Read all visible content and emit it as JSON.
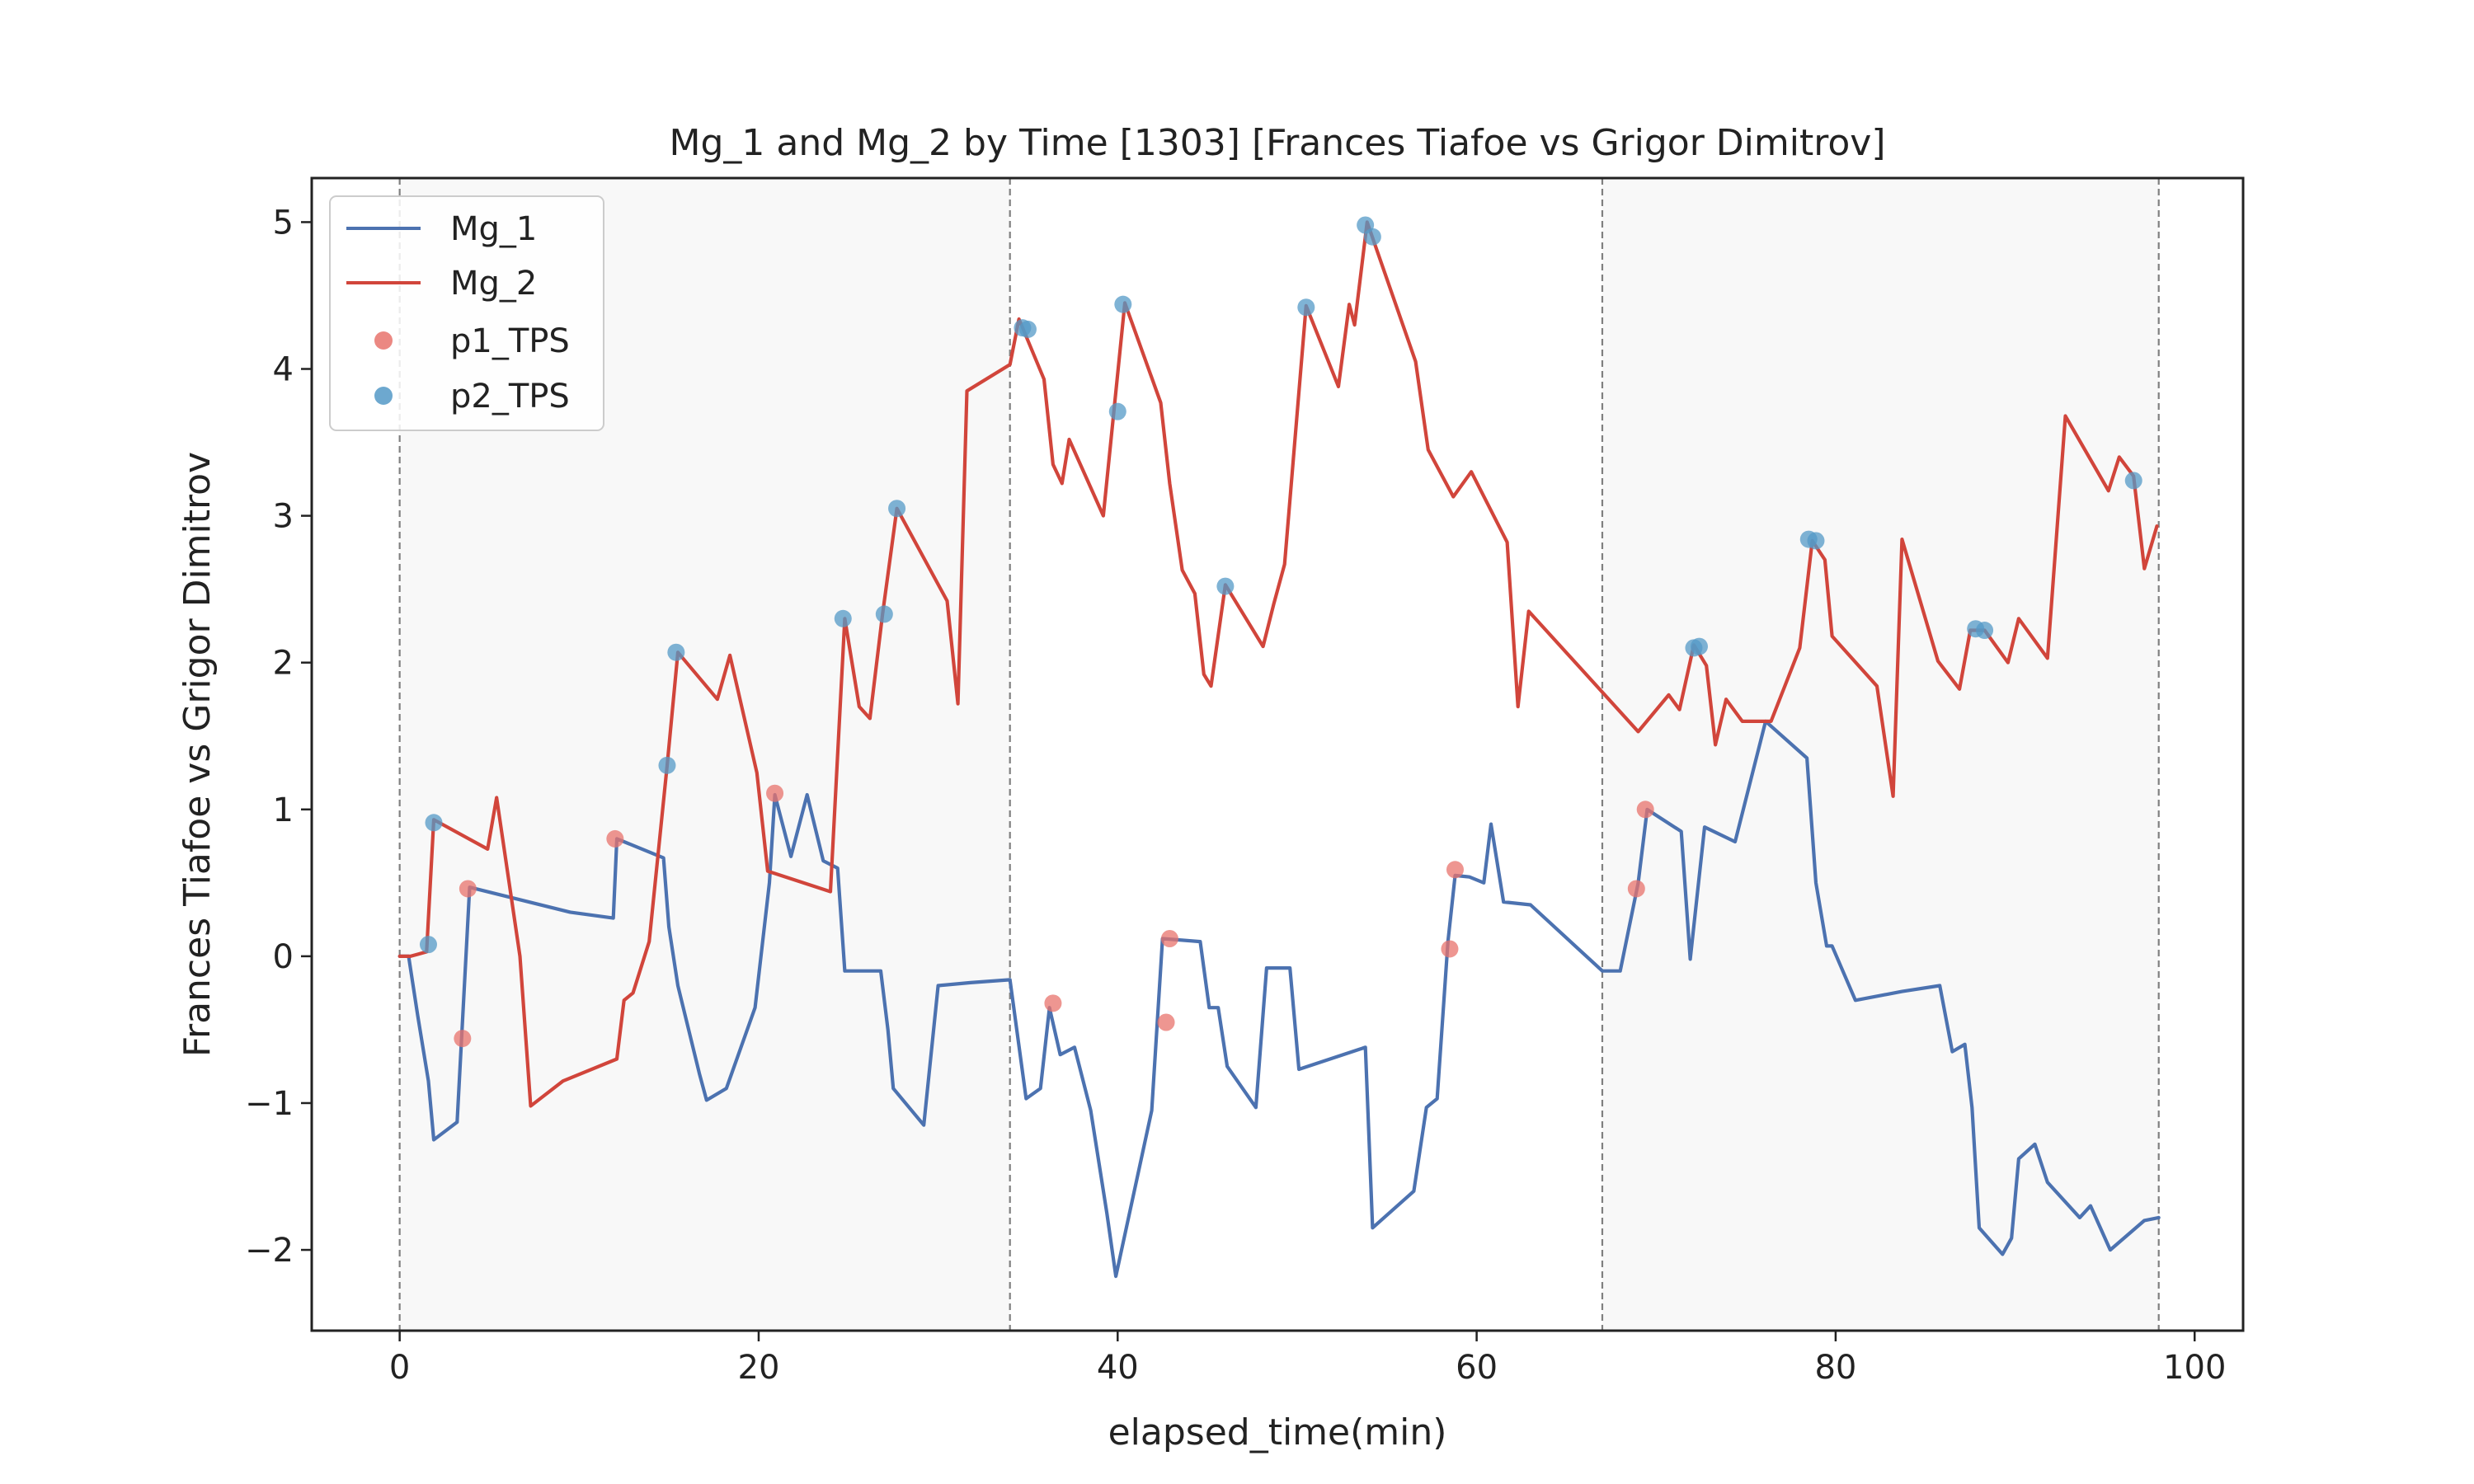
{
  "chart_data": {
    "type": "line",
    "title": "Mg_1 and Mg_2 by Time [1303] [Frances Tiafoe vs Grigor Dimitrov]",
    "xlabel": "elapsed_time(min)",
    "ylabel": "Frances Tiafoe vs Grigor Dimitrov",
    "xlim": [
      -4.9,
      102.7
    ],
    "ylim": [
      -2.55,
      5.3
    ],
    "xticks": [
      0,
      20,
      40,
      60,
      80,
      100
    ],
    "xtick_labels": [
      "0",
      "20",
      "40",
      "60",
      "80",
      "100"
    ],
    "yticks": [
      -2,
      -1,
      0,
      1,
      2,
      3,
      4,
      5
    ],
    "ytick_labels": [
      "−2",
      "−1",
      "0",
      "1",
      "2",
      "3",
      "4",
      "5"
    ],
    "set_boundaries": [
      0,
      34.0,
      67.0,
      98.0
    ],
    "shaded_sets": [
      [
        0,
        34.0
      ],
      [
        67.0,
        98.0
      ]
    ],
    "legend": {
      "location": "top-left",
      "entries": [
        {
          "label": "Mg_1",
          "kind": "line",
          "color": "#4c72b0"
        },
        {
          "label": "Mg_2",
          "kind": "line",
          "color": "#d1453b"
        },
        {
          "label": "p1_TPS",
          "kind": "marker",
          "color": "#e8736c"
        },
        {
          "label": "p2_TPS",
          "kind": "marker",
          "color": "#5499c7"
        }
      ]
    },
    "series": [
      {
        "name": "Mg_1",
        "color": "#4c72b0",
        "points": [
          [
            0.0,
            0.0
          ],
          [
            0.5,
            0.0
          ],
          [
            1.0,
            -0.4
          ],
          [
            1.6,
            -0.85
          ],
          [
            1.9,
            -1.25
          ],
          [
            3.2,
            -1.13
          ],
          [
            3.9,
            0.47
          ],
          [
            9.5,
            0.3
          ],
          [
            11.9,
            0.26
          ],
          [
            12.1,
            0.8
          ],
          [
            14.7,
            0.67
          ],
          [
            15.0,
            0.2
          ],
          [
            15.5,
            -0.2
          ],
          [
            16.7,
            -0.8
          ],
          [
            17.1,
            -0.98
          ],
          [
            18.2,
            -0.9
          ],
          [
            19.8,
            -0.35
          ],
          [
            20.6,
            0.5
          ],
          [
            20.9,
            1.1
          ],
          [
            21.8,
            0.68
          ],
          [
            22.7,
            1.1
          ],
          [
            23.6,
            0.65
          ],
          [
            24.4,
            0.6
          ],
          [
            24.8,
            -0.1
          ],
          [
            26.8,
            -0.1
          ],
          [
            27.2,
            -0.5
          ],
          [
            27.5,
            -0.9
          ],
          [
            29.2,
            -1.15
          ],
          [
            30.0,
            -0.2
          ],
          [
            31.8,
            -0.18
          ],
          [
            34.0,
            -0.16
          ],
          [
            34.9,
            -0.97
          ],
          [
            35.7,
            -0.9
          ],
          [
            36.2,
            -0.35
          ],
          [
            36.8,
            -0.67
          ],
          [
            37.6,
            -0.62
          ],
          [
            38.5,
            -1.05
          ],
          [
            39.4,
            -1.75
          ],
          [
            39.9,
            -2.18
          ],
          [
            41.9,
            -1.05
          ],
          [
            42.5,
            0.12
          ],
          [
            44.6,
            0.1
          ],
          [
            45.1,
            -0.35
          ],
          [
            45.6,
            -0.35
          ],
          [
            46.1,
            -0.75
          ],
          [
            47.7,
            -1.03
          ],
          [
            48.3,
            -0.08
          ],
          [
            49.6,
            -0.08
          ],
          [
            50.1,
            -0.77
          ],
          [
            53.8,
            -0.62
          ],
          [
            54.2,
            -1.85
          ],
          [
            56.5,
            -1.6
          ],
          [
            57.2,
            -1.03
          ],
          [
            57.8,
            -0.97
          ],
          [
            58.4,
            0.1
          ],
          [
            58.8,
            0.55
          ],
          [
            59.6,
            0.54
          ],
          [
            60.4,
            0.5
          ],
          [
            60.8,
            0.9
          ],
          [
            61.5,
            0.37
          ],
          [
            63.0,
            0.35
          ],
          [
            67.0,
            -0.1
          ],
          [
            68.0,
            -0.1
          ],
          [
            69.0,
            0.5
          ],
          [
            69.5,
            1.0
          ],
          [
            71.4,
            0.85
          ],
          [
            71.9,
            -0.02
          ],
          [
            72.7,
            0.88
          ],
          [
            74.4,
            0.78
          ],
          [
            76.1,
            1.6
          ],
          [
            78.4,
            1.35
          ],
          [
            78.9,
            0.5
          ],
          [
            79.5,
            0.07
          ],
          [
            79.8,
            0.07
          ],
          [
            81.1,
            -0.3
          ],
          [
            83.7,
            -0.24
          ],
          [
            85.8,
            -0.2
          ],
          [
            86.5,
            -0.65
          ],
          [
            87.2,
            -0.6
          ],
          [
            87.6,
            -1.03
          ],
          [
            88.0,
            -1.85
          ],
          [
            89.3,
            -2.03
          ],
          [
            89.8,
            -1.92
          ],
          [
            90.2,
            -1.38
          ],
          [
            91.1,
            -1.28
          ],
          [
            91.8,
            -1.54
          ],
          [
            93.6,
            -1.78
          ],
          [
            94.2,
            -1.7
          ],
          [
            95.3,
            -2.0
          ],
          [
            97.2,
            -1.8
          ],
          [
            98.0,
            -1.78
          ]
        ]
      },
      {
        "name": "Mg_2",
        "color": "#d1453b",
        "points": [
          [
            0.0,
            0.0
          ],
          [
            0.6,
            0.0
          ],
          [
            1.5,
            0.03
          ],
          [
            1.9,
            0.93
          ],
          [
            4.9,
            0.73
          ],
          [
            5.4,
            1.08
          ],
          [
            6.7,
            0.0
          ],
          [
            7.3,
            -1.02
          ],
          [
            9.1,
            -0.85
          ],
          [
            12.1,
            -0.7
          ],
          [
            12.5,
            -0.3
          ],
          [
            13.0,
            -0.25
          ],
          [
            13.9,
            0.1
          ],
          [
            14.9,
            1.3
          ],
          [
            15.5,
            2.07
          ],
          [
            17.7,
            1.75
          ],
          [
            18.4,
            2.05
          ],
          [
            19.9,
            1.25
          ],
          [
            20.5,
            0.58
          ],
          [
            24.0,
            0.44
          ],
          [
            24.8,
            2.3
          ],
          [
            25.6,
            1.7
          ],
          [
            26.2,
            1.62
          ],
          [
            26.9,
            2.33
          ],
          [
            27.7,
            3.05
          ],
          [
            30.5,
            2.42
          ],
          [
            31.1,
            1.72
          ],
          [
            31.6,
            3.85
          ],
          [
            34.0,
            4.03
          ],
          [
            34.5,
            4.34
          ],
          [
            35.9,
            3.93
          ],
          [
            36.4,
            3.35
          ],
          [
            36.9,
            3.22
          ],
          [
            37.3,
            3.52
          ],
          [
            39.2,
            3.0
          ],
          [
            40.4,
            4.45
          ],
          [
            42.4,
            3.77
          ],
          [
            42.9,
            3.22
          ],
          [
            43.6,
            2.63
          ],
          [
            44.3,
            2.47
          ],
          [
            44.8,
            1.92
          ],
          [
            45.2,
            1.84
          ],
          [
            46.0,
            2.53
          ],
          [
            48.1,
            2.11
          ],
          [
            48.7,
            2.4
          ],
          [
            49.3,
            2.67
          ],
          [
            50.5,
            4.43
          ],
          [
            52.3,
            3.88
          ],
          [
            52.9,
            4.44
          ],
          [
            53.2,
            4.3
          ],
          [
            53.9,
            5.0
          ],
          [
            56.6,
            4.05
          ],
          [
            57.3,
            3.45
          ],
          [
            58.7,
            3.13
          ],
          [
            59.7,
            3.3
          ],
          [
            61.7,
            2.82
          ],
          [
            62.3,
            1.7
          ],
          [
            62.9,
            2.35
          ],
          [
            69.0,
            1.53
          ],
          [
            70.7,
            1.78
          ],
          [
            71.3,
            1.68
          ],
          [
            72.1,
            2.12
          ],
          [
            72.8,
            1.98
          ],
          [
            73.3,
            1.44
          ],
          [
            73.9,
            1.75
          ],
          [
            74.8,
            1.6
          ],
          [
            76.4,
            1.6
          ],
          [
            78.0,
            2.1
          ],
          [
            78.7,
            2.83
          ],
          [
            79.4,
            2.7
          ],
          [
            79.8,
            2.18
          ],
          [
            82.3,
            1.84
          ],
          [
            83.2,
            1.09
          ],
          [
            83.7,
            2.84
          ],
          [
            85.7,
            2.01
          ],
          [
            86.9,
            1.82
          ],
          [
            87.5,
            2.22
          ],
          [
            88.3,
            2.22
          ],
          [
            89.6,
            2.0
          ],
          [
            90.2,
            2.3
          ],
          [
            91.8,
            2.03
          ],
          [
            92.8,
            3.68
          ],
          [
            95.2,
            3.17
          ],
          [
            95.8,
            3.4
          ],
          [
            96.6,
            3.27
          ],
          [
            97.2,
            2.64
          ],
          [
            97.9,
            2.93
          ]
        ]
      },
      {
        "name": "p1_TPS",
        "color": "#e8736c",
        "points": [
          [
            3.5,
            -0.56
          ],
          [
            3.8,
            0.46
          ],
          [
            12.0,
            0.8
          ],
          [
            20.9,
            1.11
          ],
          [
            36.4,
            -0.32
          ],
          [
            42.7,
            -0.45
          ],
          [
            42.9,
            0.12
          ],
          [
            58.5,
            0.05
          ],
          [
            58.8,
            0.59
          ],
          [
            68.9,
            0.46
          ],
          [
            69.4,
            1.0
          ]
        ]
      },
      {
        "name": "p2_TPS",
        "color": "#5499c7",
        "points": [
          [
            1.6,
            0.08
          ],
          [
            1.9,
            0.91
          ],
          [
            14.9,
            1.3
          ],
          [
            15.4,
            2.07
          ],
          [
            24.7,
            2.3
          ],
          [
            27.0,
            2.33
          ],
          [
            27.7,
            3.05
          ],
          [
            34.7,
            4.28
          ],
          [
            35.0,
            4.27
          ],
          [
            40.0,
            3.71
          ],
          [
            40.3,
            4.44
          ],
          [
            46.0,
            2.52
          ],
          [
            50.5,
            4.42
          ],
          [
            53.8,
            4.98
          ],
          [
            54.2,
            4.9
          ],
          [
            72.1,
            2.1
          ],
          [
            72.4,
            2.11
          ],
          [
            78.5,
            2.84
          ],
          [
            78.9,
            2.83
          ],
          [
            87.8,
            2.23
          ],
          [
            88.3,
            2.22
          ],
          [
            96.6,
            3.24
          ]
        ]
      }
    ]
  }
}
